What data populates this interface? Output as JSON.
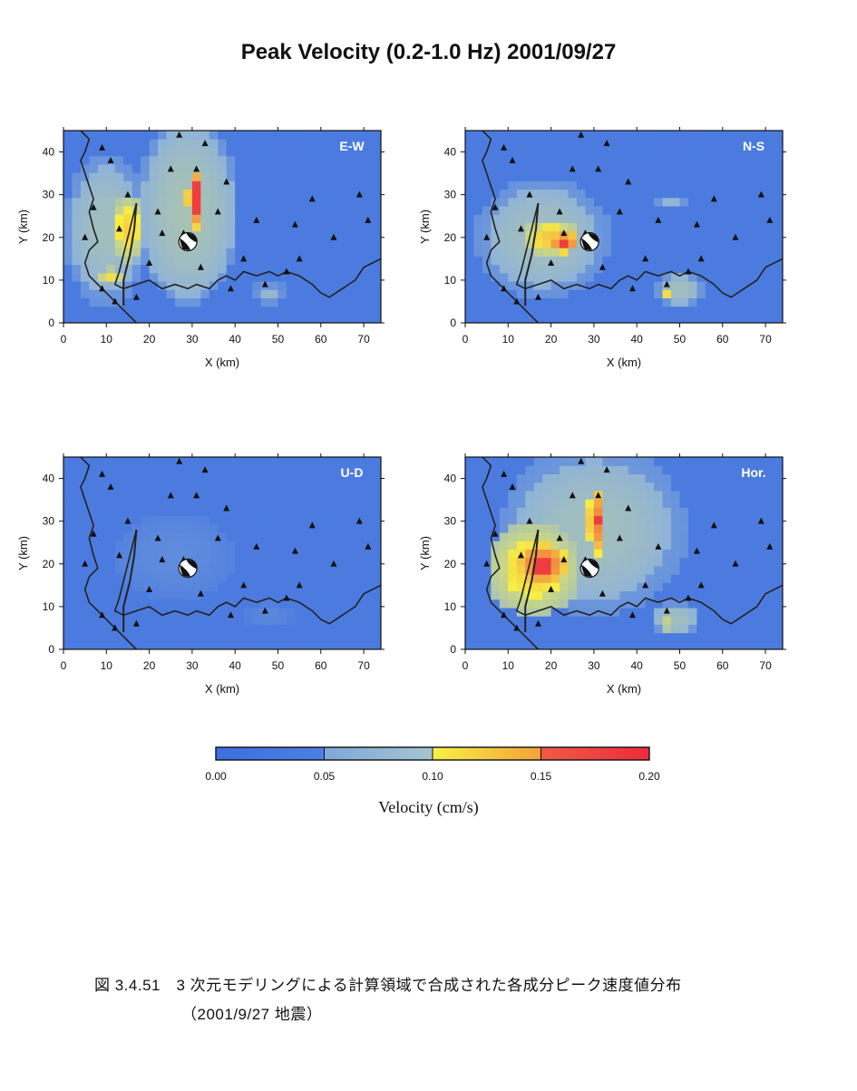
{
  "title": "Peak Velocity (0.2-1.0 Hz) 2001/09/27",
  "caption": {
    "line1": "図 3.4.51　3 次元モデリングによる計算領域で合成された各成分ピーク速度値分布",
    "line2": "（2001/9/27 地震）"
  },
  "colorbar": {
    "label": "Velocity (cm/s)",
    "ticks": [
      "0.00",
      "0.05",
      "0.10",
      "0.15",
      "0.20"
    ],
    "range": [
      0.0,
      0.2
    ],
    "colors": [
      "#3d6fe0",
      "#8fb3d8",
      "#f6f146",
      "#ef3d3f"
    ]
  },
  "chart_data": [
    {
      "type": "heatmap",
      "panel_label": "E-W",
      "xlabel": "X (km)",
      "ylabel": "Y (km)",
      "xlim": [
        0,
        74
      ],
      "ylim": [
        0,
        45
      ],
      "xticks": [
        0,
        10,
        20,
        30,
        40,
        50,
        60,
        70
      ],
      "yticks": [
        0,
        10,
        20,
        30,
        40
      ],
      "epicenter": [
        29,
        19
      ],
      "blobs": [
        {
          "x": 29,
          "y": 26,
          "rx": 12,
          "ry": 22,
          "value": 0.07
        },
        {
          "x": 10,
          "y": 22,
          "rx": 10,
          "ry": 18,
          "value": 0.065
        },
        {
          "x": 15,
          "y": 22,
          "rx": 4,
          "ry": 8,
          "value": 0.115
        },
        {
          "x": 11,
          "y": 11,
          "rx": 3.5,
          "ry": 2,
          "value": 0.11
        },
        {
          "x": 30.5,
          "y": 29,
          "rx": 1.6,
          "ry": 7,
          "value": 0.17
        },
        {
          "x": 48,
          "y": 7,
          "rx": 4,
          "ry": 3,
          "value": 0.055
        }
      ]
    },
    {
      "type": "heatmap",
      "panel_label": "N-S",
      "xlabel": "X (km)",
      "ylabel": "Y (km)",
      "xlim": [
        0,
        74
      ],
      "ylim": [
        0,
        45
      ],
      "xticks": [
        0,
        10,
        20,
        30,
        40,
        50,
        60,
        70
      ],
      "yticks": [
        0,
        10,
        20,
        30,
        40
      ],
      "epicenter": [
        29,
        19
      ],
      "blobs": [
        {
          "x": 18,
          "y": 20,
          "rx": 16,
          "ry": 14,
          "value": 0.065
        },
        {
          "x": 20,
          "y": 20,
          "rx": 7,
          "ry": 4.5,
          "value": 0.12
        },
        {
          "x": 23,
          "y": 19,
          "rx": 3.5,
          "ry": 2.5,
          "value": 0.16
        },
        {
          "x": 50,
          "y": 8,
          "rx": 6,
          "ry": 4,
          "value": 0.065
        },
        {
          "x": 47,
          "y": 7,
          "rx": 1.2,
          "ry": 1.2,
          "value": 0.11
        },
        {
          "x": 48,
          "y": 28,
          "rx": 5,
          "ry": 1.5,
          "value": 0.055
        }
      ]
    },
    {
      "type": "heatmap",
      "panel_label": "U-D",
      "xlabel": "X (km)",
      "ylabel": "Y (km)",
      "xlim": [
        0,
        74
      ],
      "ylim": [
        0,
        45
      ],
      "xticks": [
        0,
        10,
        20,
        30,
        40,
        50,
        60,
        70
      ],
      "yticks": [
        0,
        10,
        20,
        30,
        40
      ],
      "epicenter": [
        29,
        19
      ],
      "blobs": [
        {
          "x": 26,
          "y": 22,
          "rx": 14,
          "ry": 10,
          "value": 0.035
        },
        {
          "x": 48,
          "y": 8,
          "rx": 6,
          "ry": 3,
          "value": 0.03
        }
      ]
    },
    {
      "type": "heatmap",
      "panel_label": "Hor.",
      "xlabel": "X (km)",
      "ylabel": "Y (km)",
      "xlim": [
        0,
        74
      ],
      "ylim": [
        0,
        45
      ],
      "xticks": [
        0,
        10,
        20,
        30,
        40,
        50,
        60,
        70
      ],
      "yticks": [
        0,
        10,
        20,
        30,
        40
      ],
      "epicenter": [
        29,
        19
      ],
      "blobs": [
        {
          "x": 30,
          "y": 28,
          "rx": 22,
          "ry": 20,
          "value": 0.065
        },
        {
          "x": 16,
          "y": 19,
          "rx": 11,
          "ry": 11,
          "value": 0.115
        },
        {
          "x": 18,
          "y": 20,
          "rx": 6,
          "ry": 5,
          "value": 0.16
        },
        {
          "x": 30.5,
          "y": 30,
          "rx": 1.8,
          "ry": 8,
          "value": 0.155
        },
        {
          "x": 49,
          "y": 7,
          "rx": 6,
          "ry": 4,
          "value": 0.065
        },
        {
          "x": 47,
          "y": 6,
          "rx": 2.5,
          "ry": 1.2,
          "value": 0.11
        }
      ]
    }
  ],
  "stations": [
    [
      9,
      41
    ],
    [
      7,
      27
    ],
    [
      15,
      30
    ],
    [
      13,
      22
    ],
    [
      22,
      26
    ],
    [
      25,
      36
    ],
    [
      31,
      36
    ],
    [
      38,
      33
    ],
    [
      36,
      26
    ],
    [
      45,
      24
    ],
    [
      54,
      23
    ],
    [
      58,
      29
    ],
    [
      63,
      20
    ],
    [
      71,
      24
    ],
    [
      69,
      30
    ],
    [
      55,
      15
    ],
    [
      47,
      9
    ],
    [
      52,
      12
    ],
    [
      39,
      8
    ],
    [
      32,
      13
    ],
    [
      20,
      14
    ],
    [
      23,
      21
    ],
    [
      17,
      6
    ],
    [
      9,
      8
    ],
    [
      11,
      38
    ],
    [
      27,
      44
    ],
    [
      33,
      42
    ],
    [
      5,
      20
    ],
    [
      12,
      5
    ],
    [
      42,
      15
    ],
    [
      28,
      21
    ]
  ]
}
